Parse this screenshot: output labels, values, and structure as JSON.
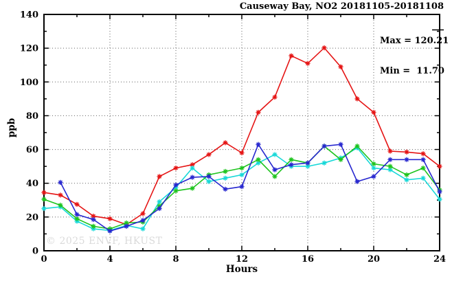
{
  "chart": {
    "title": "Causeway Bay, NO2 20181105-20181108",
    "stats": {
      "max_label": "Max = 120.21",
      "min_label": "Min =  11.70"
    },
    "xlabel": "Hours",
    "ylabel": "ppb",
    "watermark": "© 2025 ENVF, HKUST"
  },
  "chart_data": {
    "type": "line",
    "title": "Causeway Bay, NO2 20181105-20181108",
    "xlabel": "Hours",
    "ylabel": "ppb",
    "xlim": [
      0,
      24
    ],
    "ylim": [
      0,
      140
    ],
    "xticks": [
      0,
      4,
      8,
      12,
      16,
      20,
      24
    ],
    "xminorticks": [
      2,
      6,
      10,
      14,
      18,
      22
    ],
    "yticks": [
      0,
      20,
      40,
      60,
      80,
      100,
      120,
      140
    ],
    "yminorticks": [
      10,
      30,
      50,
      70,
      90,
      110,
      130
    ],
    "grid": true,
    "legend_position": "none",
    "annotations": [
      "Max = 120.21",
      "Min =  11.70"
    ],
    "max": 120.21,
    "min": 11.7,
    "x": [
      0,
      1,
      2,
      3,
      4,
      5,
      6,
      7,
      8,
      9,
      10,
      11,
      12,
      13,
      14,
      15,
      16,
      17,
      18,
      19,
      20,
      21,
      22,
      23,
      24
    ],
    "series": [
      {
        "name": "red",
        "color": "#e51414",
        "values": [
          34.5,
          33,
          27.5,
          20.5,
          19,
          15.5,
          22,
          44,
          49,
          51,
          57,
          64,
          58,
          82,
          91,
          115.5,
          111,
          120.21,
          109,
          90,
          82,
          59,
          58.5,
          57.5,
          50
        ]
      },
      {
        "name": "cyan",
        "color": "#17d8d8",
        "values": [
          25,
          26,
          17.5,
          13,
          12,
          15,
          13,
          29,
          37.5,
          49,
          41,
          43,
          45,
          52,
          57,
          50,
          50,
          52,
          55,
          61,
          49,
          48,
          42,
          43,
          30.5
        ]
      },
      {
        "name": "green",
        "color": "#1ec41e",
        "values": [
          30.5,
          27,
          19,
          14.5,
          13,
          16.5,
          17,
          26.5,
          35.5,
          37,
          45,
          47,
          49,
          54,
          44,
          54,
          52,
          62,
          54,
          62,
          51.5,
          50,
          45,
          49,
          36
        ]
      },
      {
        "name": "blue",
        "color": "#2727cf",
        "values": [
          null,
          40.5,
          21.5,
          18.5,
          11.7,
          14.5,
          18,
          25,
          39,
          43.5,
          44,
          36.5,
          38,
          63,
          48,
          51,
          52,
          62,
          63,
          41,
          44,
          54,
          54,
          54,
          35
        ]
      }
    ]
  }
}
